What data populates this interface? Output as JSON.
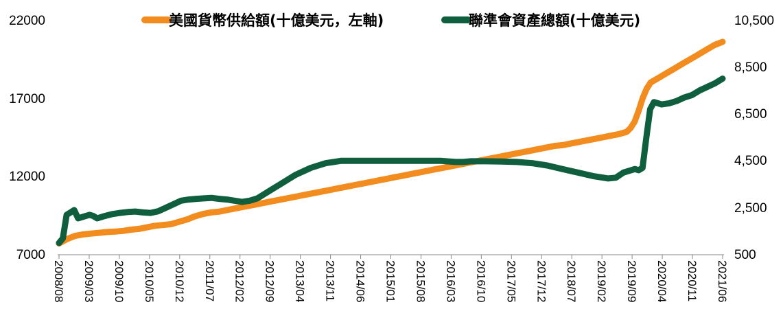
{
  "chart_data": {
    "type": "line",
    "x_labels": [
      "2008/08",
      "2009/03",
      "2009/10",
      "2010/05",
      "2010/12",
      "2011/07",
      "2012/02",
      "2012/09",
      "2013/04",
      "2013/11",
      "2014/06",
      "2015/01",
      "2015/08",
      "2016/03",
      "2016/10",
      "2017/05",
      "2017/12",
      "2018/07",
      "2019/02",
      "2019/09",
      "2020/04",
      "2020/11",
      "2021/06"
    ],
    "y_left": {
      "ticks": [
        "22000",
        "17000",
        "12000",
        "7000"
      ],
      "min": 7000,
      "max": 22000
    },
    "y_right": {
      "ticks": [
        "10,500",
        "8,500",
        "6,500",
        "4,500",
        "2,500",
        "500"
      ],
      "min": 500,
      "max": 10500
    },
    "legend_position": "top",
    "grid": false,
    "series": [
      {
        "name": "美國貨幣供給額(十億美元，左軸)",
        "axis": "left",
        "color": "#F28C1F",
        "points": [
          [
            0,
            7720
          ],
          [
            2,
            8000
          ],
          [
            4,
            8200
          ],
          [
            6,
            8300
          ],
          [
            8,
            8350
          ],
          [
            10,
            8400
          ],
          [
            12,
            8450
          ],
          [
            14,
            8480
          ],
          [
            16,
            8520
          ],
          [
            18,
            8600
          ],
          [
            20,
            8650
          ],
          [
            22,
            8750
          ],
          [
            24,
            8850
          ],
          [
            26,
            8900
          ],
          [
            28,
            8950
          ],
          [
            30,
            9100
          ],
          [
            32,
            9250
          ],
          [
            34,
            9450
          ],
          [
            36,
            9600
          ],
          [
            38,
            9700
          ],
          [
            40,
            9750
          ],
          [
            42,
            9850
          ],
          [
            44,
            9950
          ],
          [
            46,
            10050
          ],
          [
            48,
            10150
          ],
          [
            50,
            10250
          ],
          [
            52,
            10350
          ],
          [
            54,
            10450
          ],
          [
            56,
            10550
          ],
          [
            58,
            10650
          ],
          [
            60,
            10750
          ],
          [
            62,
            10850
          ],
          [
            64,
            10950
          ],
          [
            66,
            11050
          ],
          [
            68,
            11150
          ],
          [
            70,
            11250
          ],
          [
            72,
            11350
          ],
          [
            74,
            11450
          ],
          [
            76,
            11550
          ],
          [
            78,
            11650
          ],
          [
            80,
            11750
          ],
          [
            82,
            11850
          ],
          [
            84,
            11950
          ],
          [
            86,
            12050
          ],
          [
            88,
            12150
          ],
          [
            90,
            12250
          ],
          [
            92,
            12350
          ],
          [
            94,
            12450
          ],
          [
            96,
            12550
          ],
          [
            98,
            12650
          ],
          [
            100,
            12750
          ],
          [
            102,
            12850
          ],
          [
            104,
            12950
          ],
          [
            106,
            13050
          ],
          [
            108,
            13150
          ],
          [
            110,
            13250
          ],
          [
            112,
            13350
          ],
          [
            114,
            13450
          ],
          [
            116,
            13550
          ],
          [
            118,
            13650
          ],
          [
            120,
            13750
          ],
          [
            122,
            13850
          ],
          [
            124,
            13950
          ],
          [
            126,
            14000
          ],
          [
            128,
            14100
          ],
          [
            130,
            14200
          ],
          [
            132,
            14300
          ],
          [
            134,
            14400
          ],
          [
            136,
            14500
          ],
          [
            138,
            14600
          ],
          [
            140,
            14700
          ],
          [
            142,
            14850
          ],
          [
            143,
            15100
          ],
          [
            144,
            15500
          ],
          [
            145,
            16200
          ],
          [
            146,
            17000
          ],
          [
            147,
            17600
          ],
          [
            148,
            18000
          ],
          [
            150,
            18300
          ],
          [
            152,
            18600
          ],
          [
            154,
            18900
          ],
          [
            156,
            19200
          ],
          [
            158,
            19500
          ],
          [
            160,
            19800
          ],
          [
            162,
            20100
          ],
          [
            164,
            20400
          ],
          [
            166,
            20600
          ]
        ]
      },
      {
        "name": "聯準會資產總額(十億美元)",
        "axis": "right",
        "color": "#0F5F3F",
        "points": [
          [
            0,
            1000
          ],
          [
            1,
            1200
          ],
          [
            2,
            2200
          ],
          [
            3,
            2300
          ],
          [
            4,
            2400
          ],
          [
            5,
            2050
          ],
          [
            6,
            2100
          ],
          [
            7,
            2150
          ],
          [
            8,
            2200
          ],
          [
            9,
            2150
          ],
          [
            10,
            2050
          ],
          [
            11,
            2100
          ],
          [
            12,
            2150
          ],
          [
            14,
            2230
          ],
          [
            16,
            2280
          ],
          [
            18,
            2320
          ],
          [
            20,
            2340
          ],
          [
            22,
            2300
          ],
          [
            24,
            2280
          ],
          [
            26,
            2350
          ],
          [
            28,
            2500
          ],
          [
            30,
            2650
          ],
          [
            32,
            2800
          ],
          [
            34,
            2850
          ],
          [
            36,
            2880
          ],
          [
            38,
            2900
          ],
          [
            40,
            2920
          ],
          [
            42,
            2880
          ],
          [
            44,
            2850
          ],
          [
            46,
            2800
          ],
          [
            48,
            2750
          ],
          [
            50,
            2800
          ],
          [
            52,
            2900
          ],
          [
            54,
            3100
          ],
          [
            56,
            3300
          ],
          [
            58,
            3500
          ],
          [
            60,
            3700
          ],
          [
            62,
            3900
          ],
          [
            64,
            4050
          ],
          [
            66,
            4200
          ],
          [
            68,
            4300
          ],
          [
            70,
            4400
          ],
          [
            72,
            4450
          ],
          [
            74,
            4500
          ],
          [
            76,
            4500
          ],
          [
            80,
            4500
          ],
          [
            90,
            4500
          ],
          [
            100,
            4500
          ],
          [
            104,
            4450
          ],
          [
            106,
            4450
          ],
          [
            108,
            4480
          ],
          [
            112,
            4480
          ],
          [
            116,
            4470
          ],
          [
            120,
            4450
          ],
          [
            124,
            4400
          ],
          [
            128,
            4300
          ],
          [
            132,
            4150
          ],
          [
            136,
            4000
          ],
          [
            140,
            3850
          ],
          [
            144,
            3750
          ],
          [
            146,
            3780
          ],
          [
            148,
            4000
          ],
          [
            150,
            4100
          ],
          [
            151,
            4150
          ],
          [
            152,
            4100
          ],
          [
            153,
            4200
          ],
          [
            154,
            5500
          ],
          [
            155,
            6700
          ],
          [
            156,
            7000
          ],
          [
            158,
            6900
          ],
          [
            160,
            6950
          ],
          [
            162,
            7050
          ],
          [
            164,
            7200
          ],
          [
            166,
            7300
          ],
          [
            168,
            7500
          ],
          [
            170,
            7650
          ],
          [
            172,
            7800
          ],
          [
            174,
            8000
          ]
        ]
      }
    ]
  }
}
